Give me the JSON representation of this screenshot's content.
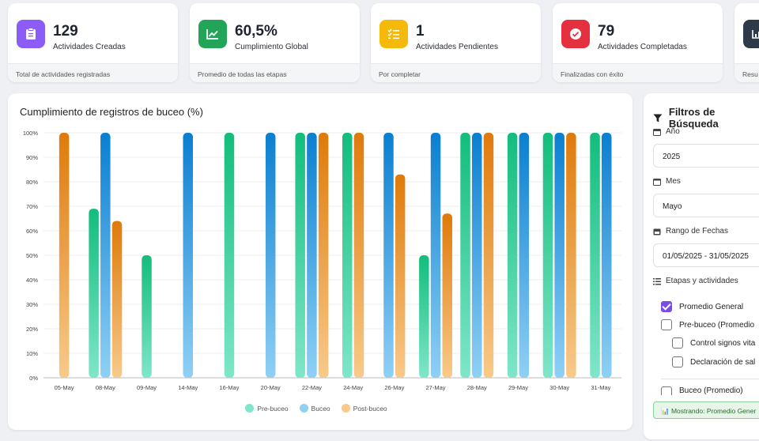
{
  "kpis": [
    {
      "value": "129",
      "label": "Actividades Creadas",
      "footer": "Total de actividades registradas",
      "color": "#8b5cf6",
      "icon": "clipboard-icon"
    },
    {
      "value": "60,5%",
      "label": "Cumplimiento Global",
      "footer": "Promedio de todas las etapas",
      "color": "#22a559",
      "icon": "chart-line-icon"
    },
    {
      "value": "1",
      "label": "Actividades Pendientes",
      "footer": "Por completar",
      "color": "#f5b90a",
      "icon": "list-check-icon"
    },
    {
      "value": "79",
      "label": "Actividades Completadas",
      "footer": "Finalizadas con éxito",
      "color": "#e5303f",
      "icon": "check-circle-icon"
    },
    {
      "value": "",
      "label": "",
      "footer": "Resu",
      "color": "#2e3a4a",
      "icon": "chart-icon"
    }
  ],
  "chart": {
    "title": "Cumplimiento de registros de buceo (%)"
  },
  "chart_data": {
    "type": "bar",
    "title": "Cumplimiento de registros de buceo (%)",
    "categories": [
      "05-May",
      "08-May",
      "09-May",
      "14-May",
      "16-May",
      "20-May",
      "22-May",
      "24-May",
      "26-May",
      "27-May",
      "28-May",
      "29-May",
      "30-May",
      "31-May"
    ],
    "ylim": [
      0,
      100
    ],
    "yticks": [
      "0%",
      "10%",
      "20%",
      "30%",
      "40%",
      "50%",
      "60%",
      "70%",
      "80%",
      "90%",
      "100%"
    ],
    "series": [
      {
        "name": "Pre-buceo",
        "values": [
          null,
          69,
          50,
          null,
          100,
          null,
          100,
          100,
          null,
          50,
          100,
          100,
          100,
          100
        ]
      },
      {
        "name": "Buceo",
        "values": [
          null,
          100,
          null,
          100,
          null,
          100,
          100,
          null,
          100,
          100,
          100,
          100,
          100,
          100
        ]
      },
      {
        "name": "Post-buceo",
        "values": [
          100,
          64,
          null,
          null,
          null,
          null,
          100,
          100,
          83,
          67,
          100,
          null,
          100,
          null
        ]
      }
    ]
  },
  "legend": [
    "Pre-buceo",
    "Buceo",
    "Post-buceo"
  ],
  "filters": {
    "title": "Filtros de Búsqueda",
    "year_label": "Año",
    "year_value": "2025",
    "month_label": "Mes",
    "month_value": "Mayo",
    "range_label": "Rango de Fechas",
    "range_value": "01/05/2025 - 31/05/2025",
    "stages_label": "Etapas y actividades",
    "options": [
      {
        "label": "Promedio General",
        "checked": true
      },
      {
        "label": "Pre-buceo (Promedio",
        "checked": false
      },
      {
        "label": "Control signos vita",
        "checked": false
      },
      {
        "label": "Declaración de sal",
        "checked": false
      },
      {
        "label": "Buceo (Promedio)",
        "checked": false
      }
    ],
    "showing": "📊 Mostrando: Promedio Gener"
  }
}
